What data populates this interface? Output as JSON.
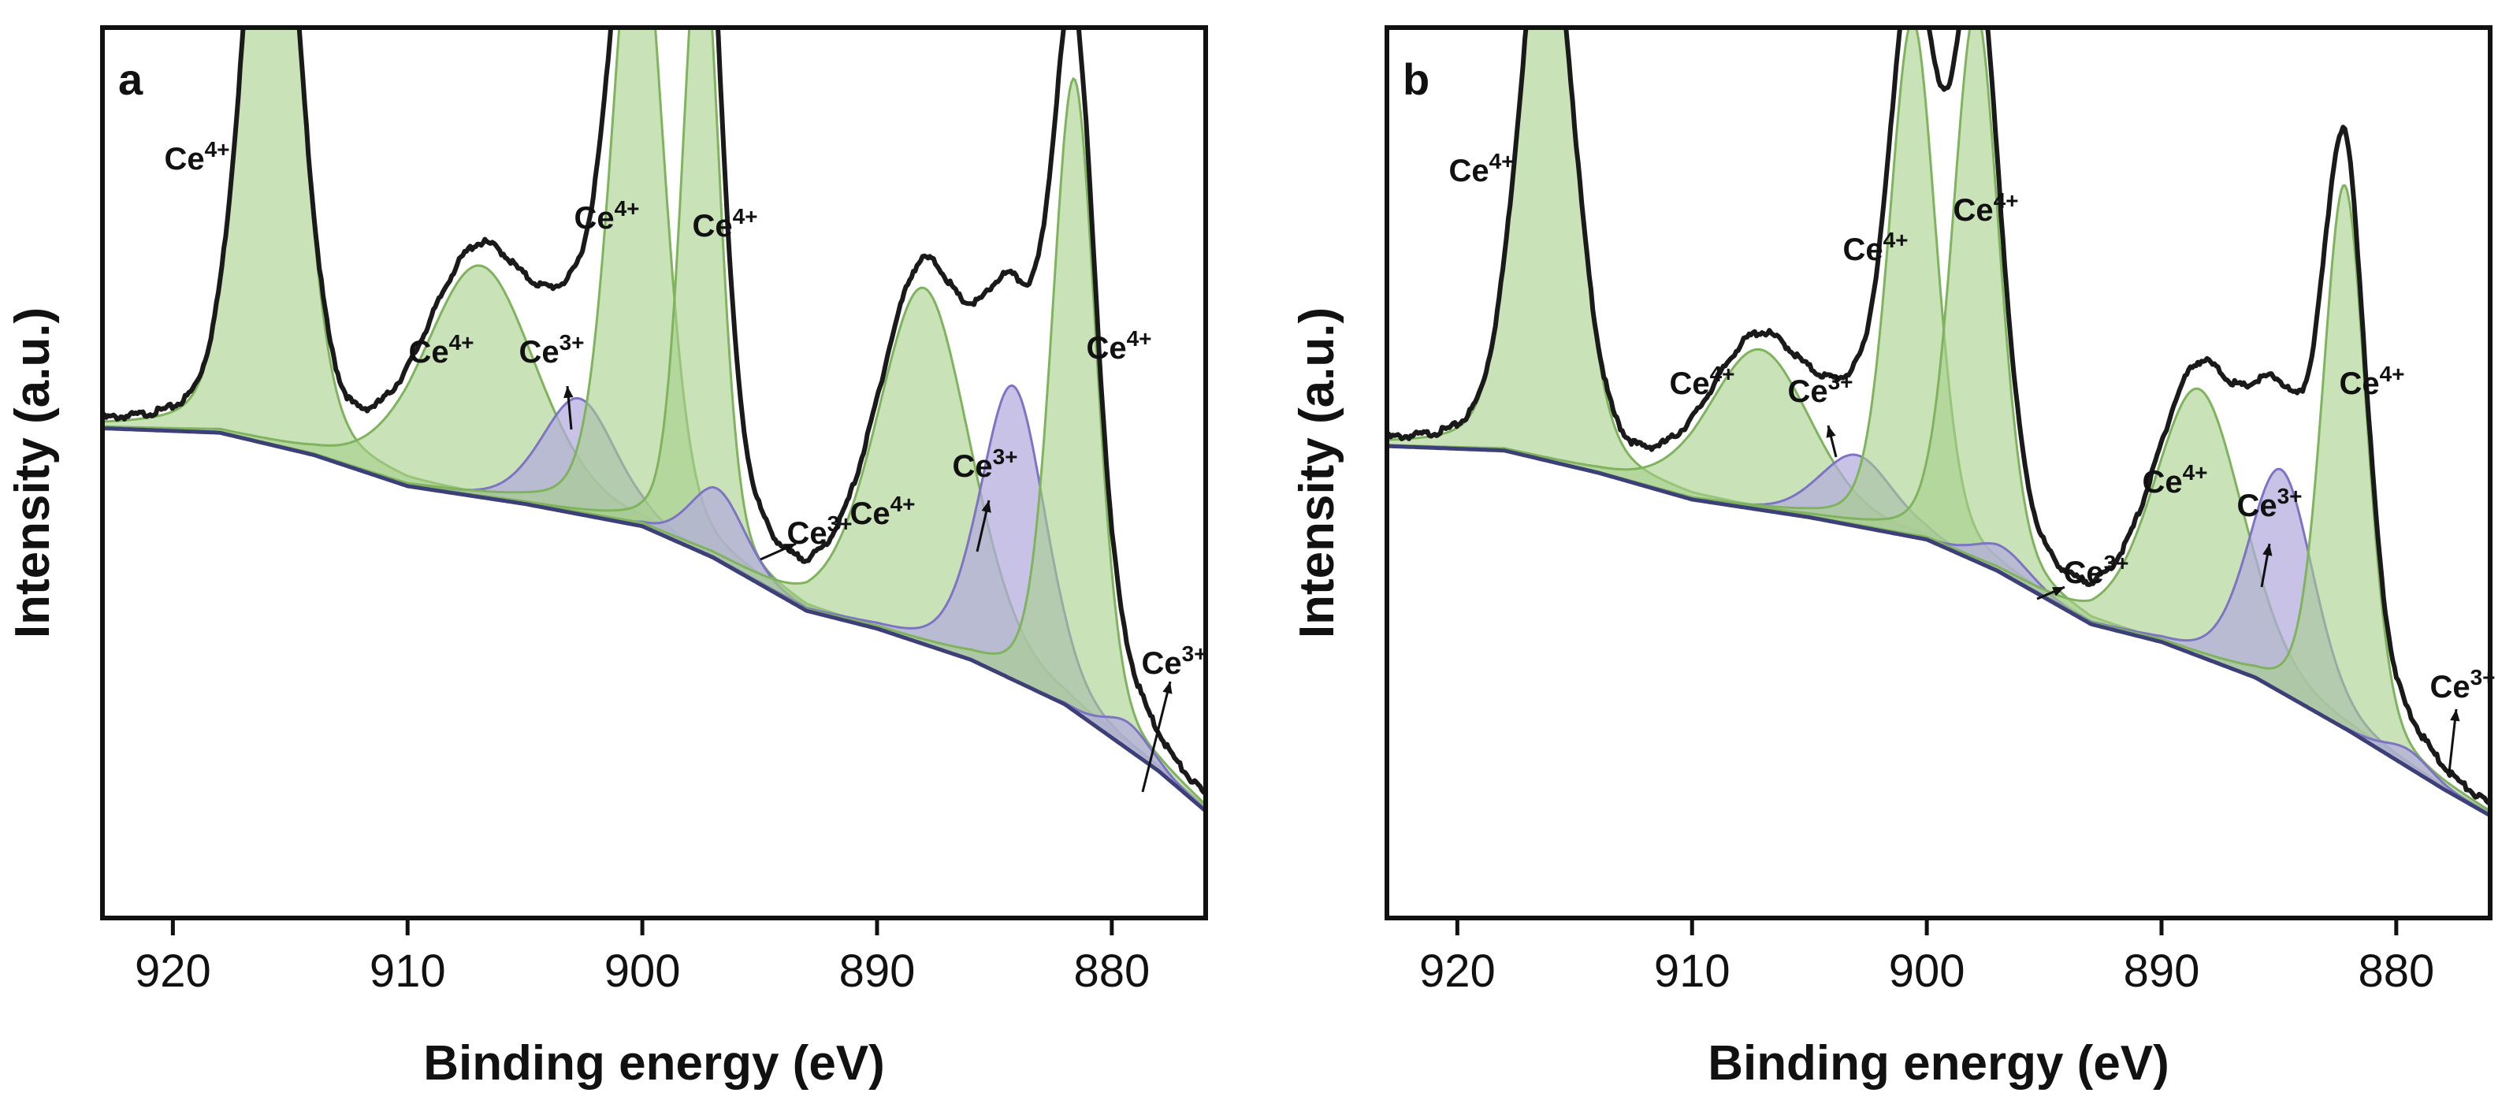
{
  "figure": {
    "colors": {
      "ce4_fill": "#a8d08c",
      "ce4_stroke": "#7fb35e",
      "ce3_fill": "#b3acdc",
      "ce3_stroke": "#7e74c4",
      "background_line": "#3d3f78",
      "envelope": "#1a1a1a"
    }
  },
  "chart_data": [
    {
      "type": "line",
      "panel": "a",
      "xlabel": "Binding energy (eV)",
      "ylabel": "Intensity (a.u.)",
      "xlim": [
        923,
        876
      ],
      "ylim": [
        0,
        1
      ],
      "xticks": [
        920,
        910,
        900,
        890,
        880
      ],
      "background": {
        "x": [
          923,
          918,
          914,
          910,
          905,
          900,
          897,
          893,
          890,
          886,
          882,
          878,
          876
        ],
        "y": [
          0.55,
          0.545,
          0.52,
          0.485,
          0.465,
          0.44,
          0.405,
          0.345,
          0.325,
          0.29,
          0.24,
          0.165,
          0.12
        ]
      },
      "components": [
        {
          "state": "Ce4+",
          "center": 915.8,
          "height": 0.76,
          "width": 1.2
        },
        {
          "state": "Ce4+",
          "center": 906.9,
          "height": 0.26,
          "width": 2.4
        },
        {
          "state": "Ce3+",
          "center": 902.7,
          "height": 0.13,
          "width": 1.6
        },
        {
          "state": "Ce4+",
          "center": 900.2,
          "height": 0.73,
          "width": 1.1
        },
        {
          "state": "Ce4+",
          "center": 897.5,
          "height": 0.72,
          "width": 0.8
        },
        {
          "state": "Ce3+",
          "center": 896.8,
          "height": 0.08,
          "width": 1.2
        },
        {
          "state": "Ce4+",
          "center": 888.0,
          "height": 0.4,
          "width": 2.0
        },
        {
          "state": "Ce3+",
          "center": 884.2,
          "height": 0.33,
          "width": 1.4
        },
        {
          "state": "Ce4+",
          "center": 881.6,
          "height": 0.71,
          "width": 0.95
        },
        {
          "state": "Ce3+",
          "center": 879.3,
          "height": 0.03,
          "width": 1.0
        }
      ],
      "labels": [
        {
          "main": "Ce",
          "sup": "4+"
        },
        {
          "main": "Ce",
          "sup": "4+"
        },
        {
          "main": "Ce",
          "sup": "3+"
        },
        {
          "main": "Ce",
          "sup": "4+"
        },
        {
          "main": "Ce",
          "sup": "4+"
        },
        {
          "main": "Ce",
          "sup": "3+"
        },
        {
          "main": "Ce",
          "sup": "4+"
        },
        {
          "main": "Ce",
          "sup": "3+"
        },
        {
          "main": "Ce",
          "sup": "4+"
        },
        {
          "main": "Ce",
          "sup": "3+"
        }
      ]
    },
    {
      "type": "line",
      "panel": "b",
      "xlabel": "Binding energy (eV)",
      "ylabel": "Intensity (a.u.)",
      "xlim": [
        923,
        876
      ],
      "ylim": [
        0,
        1
      ],
      "xticks": [
        920,
        910,
        900,
        890,
        880
      ],
      "background": {
        "x": [
          923,
          918,
          914,
          910,
          905,
          900,
          897,
          893,
          890,
          886,
          882,
          878,
          876
        ],
        "y": [
          0.53,
          0.525,
          0.5,
          0.47,
          0.45,
          0.425,
          0.39,
          0.33,
          0.31,
          0.27,
          0.21,
          0.145,
          0.115
        ]
      },
      "components": [
        {
          "state": "Ce4+",
          "center": 916.2,
          "height": 0.63,
          "width": 1.2
        },
        {
          "state": "Ce4+",
          "center": 907.1,
          "height": 0.18,
          "width": 2.2
        },
        {
          "state": "Ce3+",
          "center": 903.0,
          "height": 0.08,
          "width": 1.6
        },
        {
          "state": "Ce4+",
          "center": 900.6,
          "height": 0.58,
          "width": 1.0
        },
        {
          "state": "Ce4+",
          "center": 897.9,
          "height": 0.62,
          "width": 1.0
        },
        {
          "state": "Ce3+",
          "center": 896.8,
          "height": 0.03,
          "width": 1.2
        },
        {
          "state": "Ce4+",
          "center": 888.4,
          "height": 0.3,
          "width": 1.9
        },
        {
          "state": "Ce3+",
          "center": 884.9,
          "height": 0.25,
          "width": 1.4
        },
        {
          "state": "Ce4+",
          "center": 882.2,
          "height": 0.61,
          "width": 0.95
        },
        {
          "state": "Ce3+",
          "center": 879.5,
          "height": 0.02,
          "width": 1.0
        }
      ],
      "labels": [
        {
          "main": "Ce",
          "sup": "4+"
        },
        {
          "main": "Ce",
          "sup": "4+"
        },
        {
          "main": "Ce",
          "sup": "3+"
        },
        {
          "main": "Ce",
          "sup": "4+"
        },
        {
          "main": "Ce",
          "sup": "4+"
        },
        {
          "main": "Ce",
          "sup": "3+"
        },
        {
          "main": "Ce",
          "sup": "4+"
        },
        {
          "main": "Ce",
          "sup": "3+"
        },
        {
          "main": "Ce",
          "sup": "4+"
        },
        {
          "main": "Ce",
          "sup": "3+"
        }
      ]
    }
  ]
}
